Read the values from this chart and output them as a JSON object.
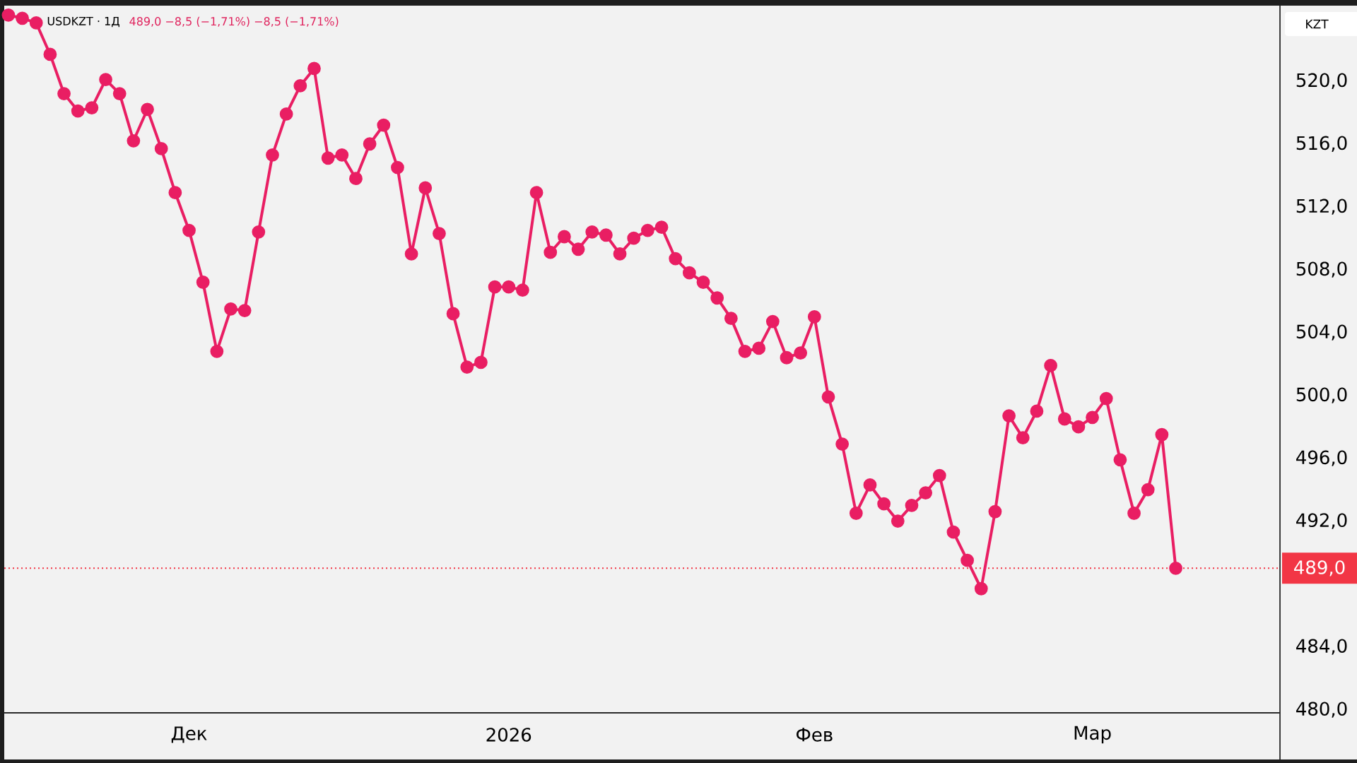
{
  "chart_data": {
    "type": "line",
    "title": "USDKZT · 1Д",
    "subtitle": "489,0 −8,5 (−1,71%) −8,5 (−1,71%)",
    "ylabel": "KZT",
    "categories": [
      null,
      null,
      null,
      null,
      null,
      null,
      null,
      null,
      null,
      null,
      null,
      null,
      null,
      "Дек",
      null,
      null,
      null,
      null,
      null,
      null,
      null,
      null,
      null,
      null,
      null,
      null,
      null,
      null,
      null,
      null,
      null,
      null,
      null,
      null,
      null,
      null,
      "2026",
      null,
      null,
      null,
      null,
      null,
      null,
      null,
      null,
      null,
      null,
      null,
      null,
      null,
      null,
      null,
      null,
      null,
      null,
      null,
      null,
      null,
      "Фев",
      null,
      null,
      null,
      null,
      null,
      null,
      null,
      null,
      null,
      null,
      null,
      null,
      null,
      null,
      null,
      null,
      null,
      null,
      null,
      "Мар",
      null,
      null,
      null,
      null,
      null,
      null
    ],
    "series": [
      {
        "color": "#e91e63",
        "values": [
          524.2,
          524.0,
          523.7,
          521.7,
          519.2,
          518.1,
          518.3,
          520.1,
          519.2,
          516.2,
          518.2,
          515.7,
          512.9,
          510.5,
          507.2,
          502.8,
          505.5,
          505.4,
          510.4,
          515.3,
          517.9,
          519.7,
          520.8,
          515.1,
          515.3,
          513.8,
          516.0,
          517.2,
          514.5,
          509.0,
          513.2,
          510.3,
          505.2,
          501.8,
          502.1,
          506.9,
          506.9,
          506.7,
          512.9,
          509.1,
          510.1,
          509.3,
          510.4,
          510.2,
          509.0,
          510.0,
          510.5,
          510.7,
          508.7,
          507.8,
          507.2,
          506.2,
          504.9,
          502.8,
          503.0,
          504.7,
          502.4,
          502.7,
          505.0,
          499.9,
          496.9,
          492.5,
          494.3,
          493.1,
          492.0,
          493.0,
          493.8,
          494.9,
          491.3,
          489.5,
          487.7,
          492.6,
          498.7,
          497.3,
          499.0,
          501.9,
          498.5,
          498.0,
          498.6,
          499.8,
          495.9,
          492.5,
          494.0,
          497.5,
          489.0
        ]
      }
    ],
    "ylim": [
      479.8,
      524.8
    ],
    "yticks": [
      {
        "value": 480,
        "label": "480,0"
      },
      {
        "value": 484,
        "label": "484,0"
      },
      {
        "value": 492,
        "label": "492,0"
      },
      {
        "value": 496,
        "label": "496,0"
      },
      {
        "value": 500,
        "label": "500,0"
      },
      {
        "value": 504,
        "label": "504,0"
      },
      {
        "value": 508,
        "label": "508,0"
      },
      {
        "value": 512,
        "label": "512,0"
      },
      {
        "value": 516,
        "label": "516,0"
      },
      {
        "value": 520,
        "label": "520,0"
      }
    ],
    "marker": "circle",
    "line_style": "solid",
    "ref_lines": [
      {
        "axis": "y",
        "value": 489.0,
        "label": "489,0",
        "color": "#f23645",
        "line_style": "dotted"
      }
    ]
  }
}
